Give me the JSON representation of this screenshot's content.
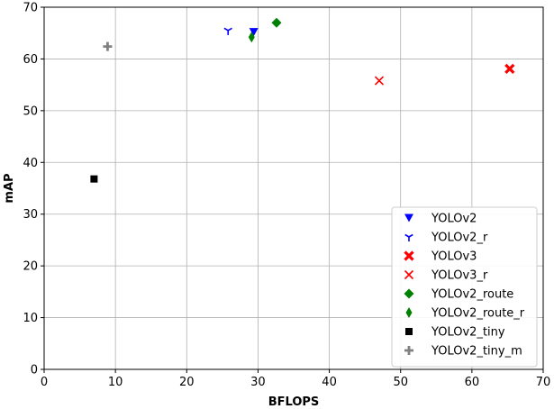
{
  "chart_data": {
    "type": "scatter",
    "title": "",
    "xlabel": "BFLOPS",
    "ylabel": "mAP",
    "xlim": [
      0,
      70
    ],
    "ylim": [
      0,
      70
    ],
    "xticks": [
      0,
      10,
      20,
      30,
      40,
      50,
      60,
      70
    ],
    "yticks": [
      0,
      10,
      20,
      30,
      40,
      50,
      60,
      70
    ],
    "grid": true,
    "legend_position": "lower-right",
    "series": [
      {
        "name": "YOLOv2",
        "marker": "triangle-down",
        "color": "#0000ff",
        "points": [
          {
            "x": 29.4,
            "y": 65.2
          }
        ]
      },
      {
        "name": "YOLOv2_r",
        "marker": "tri-down",
        "color": "#0000ff",
        "points": [
          {
            "x": 25.8,
            "y": 65.5
          }
        ]
      },
      {
        "name": "YOLOv3",
        "marker": "x-filled",
        "color": "#ff0000",
        "points": [
          {
            "x": 65.3,
            "y": 58.1
          }
        ]
      },
      {
        "name": "YOLOv3_r",
        "marker": "x",
        "color": "#ff0000",
        "points": [
          {
            "x": 47.0,
            "y": 55.8
          }
        ]
      },
      {
        "name": "YOLOv2_route",
        "marker": "diamond",
        "color": "#008000",
        "points": [
          {
            "x": 32.6,
            "y": 67.0
          }
        ]
      },
      {
        "name": "YOLOv2_route_r",
        "marker": "thin-diamond",
        "color": "#008000",
        "points": [
          {
            "x": 29.1,
            "y": 64.2
          }
        ]
      },
      {
        "name": "YOLOv2_tiny",
        "marker": "square",
        "color": "#000000",
        "points": [
          {
            "x": 7.0,
            "y": 36.8
          }
        ]
      },
      {
        "name": "YOLOv2_tiny_m",
        "marker": "plus-filled",
        "color": "#808080",
        "points": [
          {
            "x": 8.9,
            "y": 62.4
          }
        ]
      }
    ]
  }
}
